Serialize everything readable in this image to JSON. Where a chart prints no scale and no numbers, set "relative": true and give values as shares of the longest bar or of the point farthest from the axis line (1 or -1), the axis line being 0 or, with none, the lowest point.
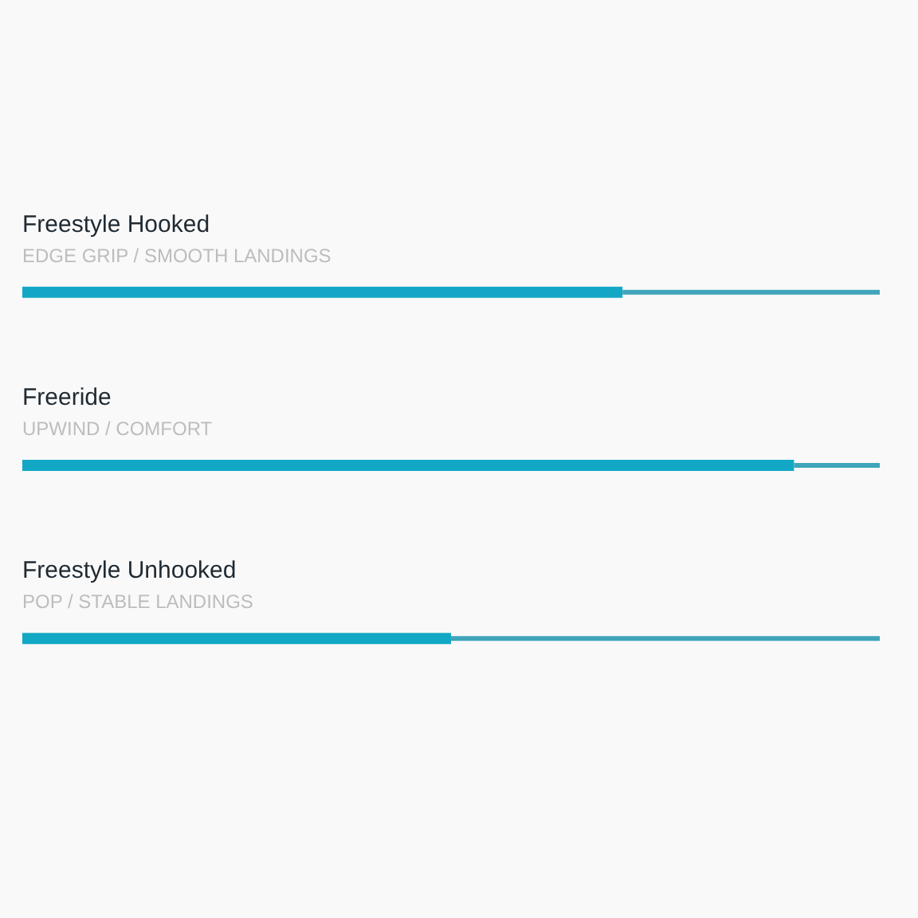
{
  "chart_data": {
    "type": "bar",
    "orientation": "horizontal",
    "stacked": true,
    "relative": true,
    "categories": [
      "Freestyle Hooked",
      "Freeride",
      "Freestyle Unhooked"
    ],
    "series": [
      {
        "color": "#12a8c5",
        "values": [
          0.7,
          0.9,
          0.5
        ]
      },
      {
        "color": "#3fa5ba",
        "values": [
          0.3,
          0.1,
          0.5
        ]
      }
    ],
    "annotations": [
      "EDGE GRIP / SMOOTH LANDINGS",
      "UPWIND / COMFORT",
      "POP / STABLE LANDINGS"
    ]
  }
}
